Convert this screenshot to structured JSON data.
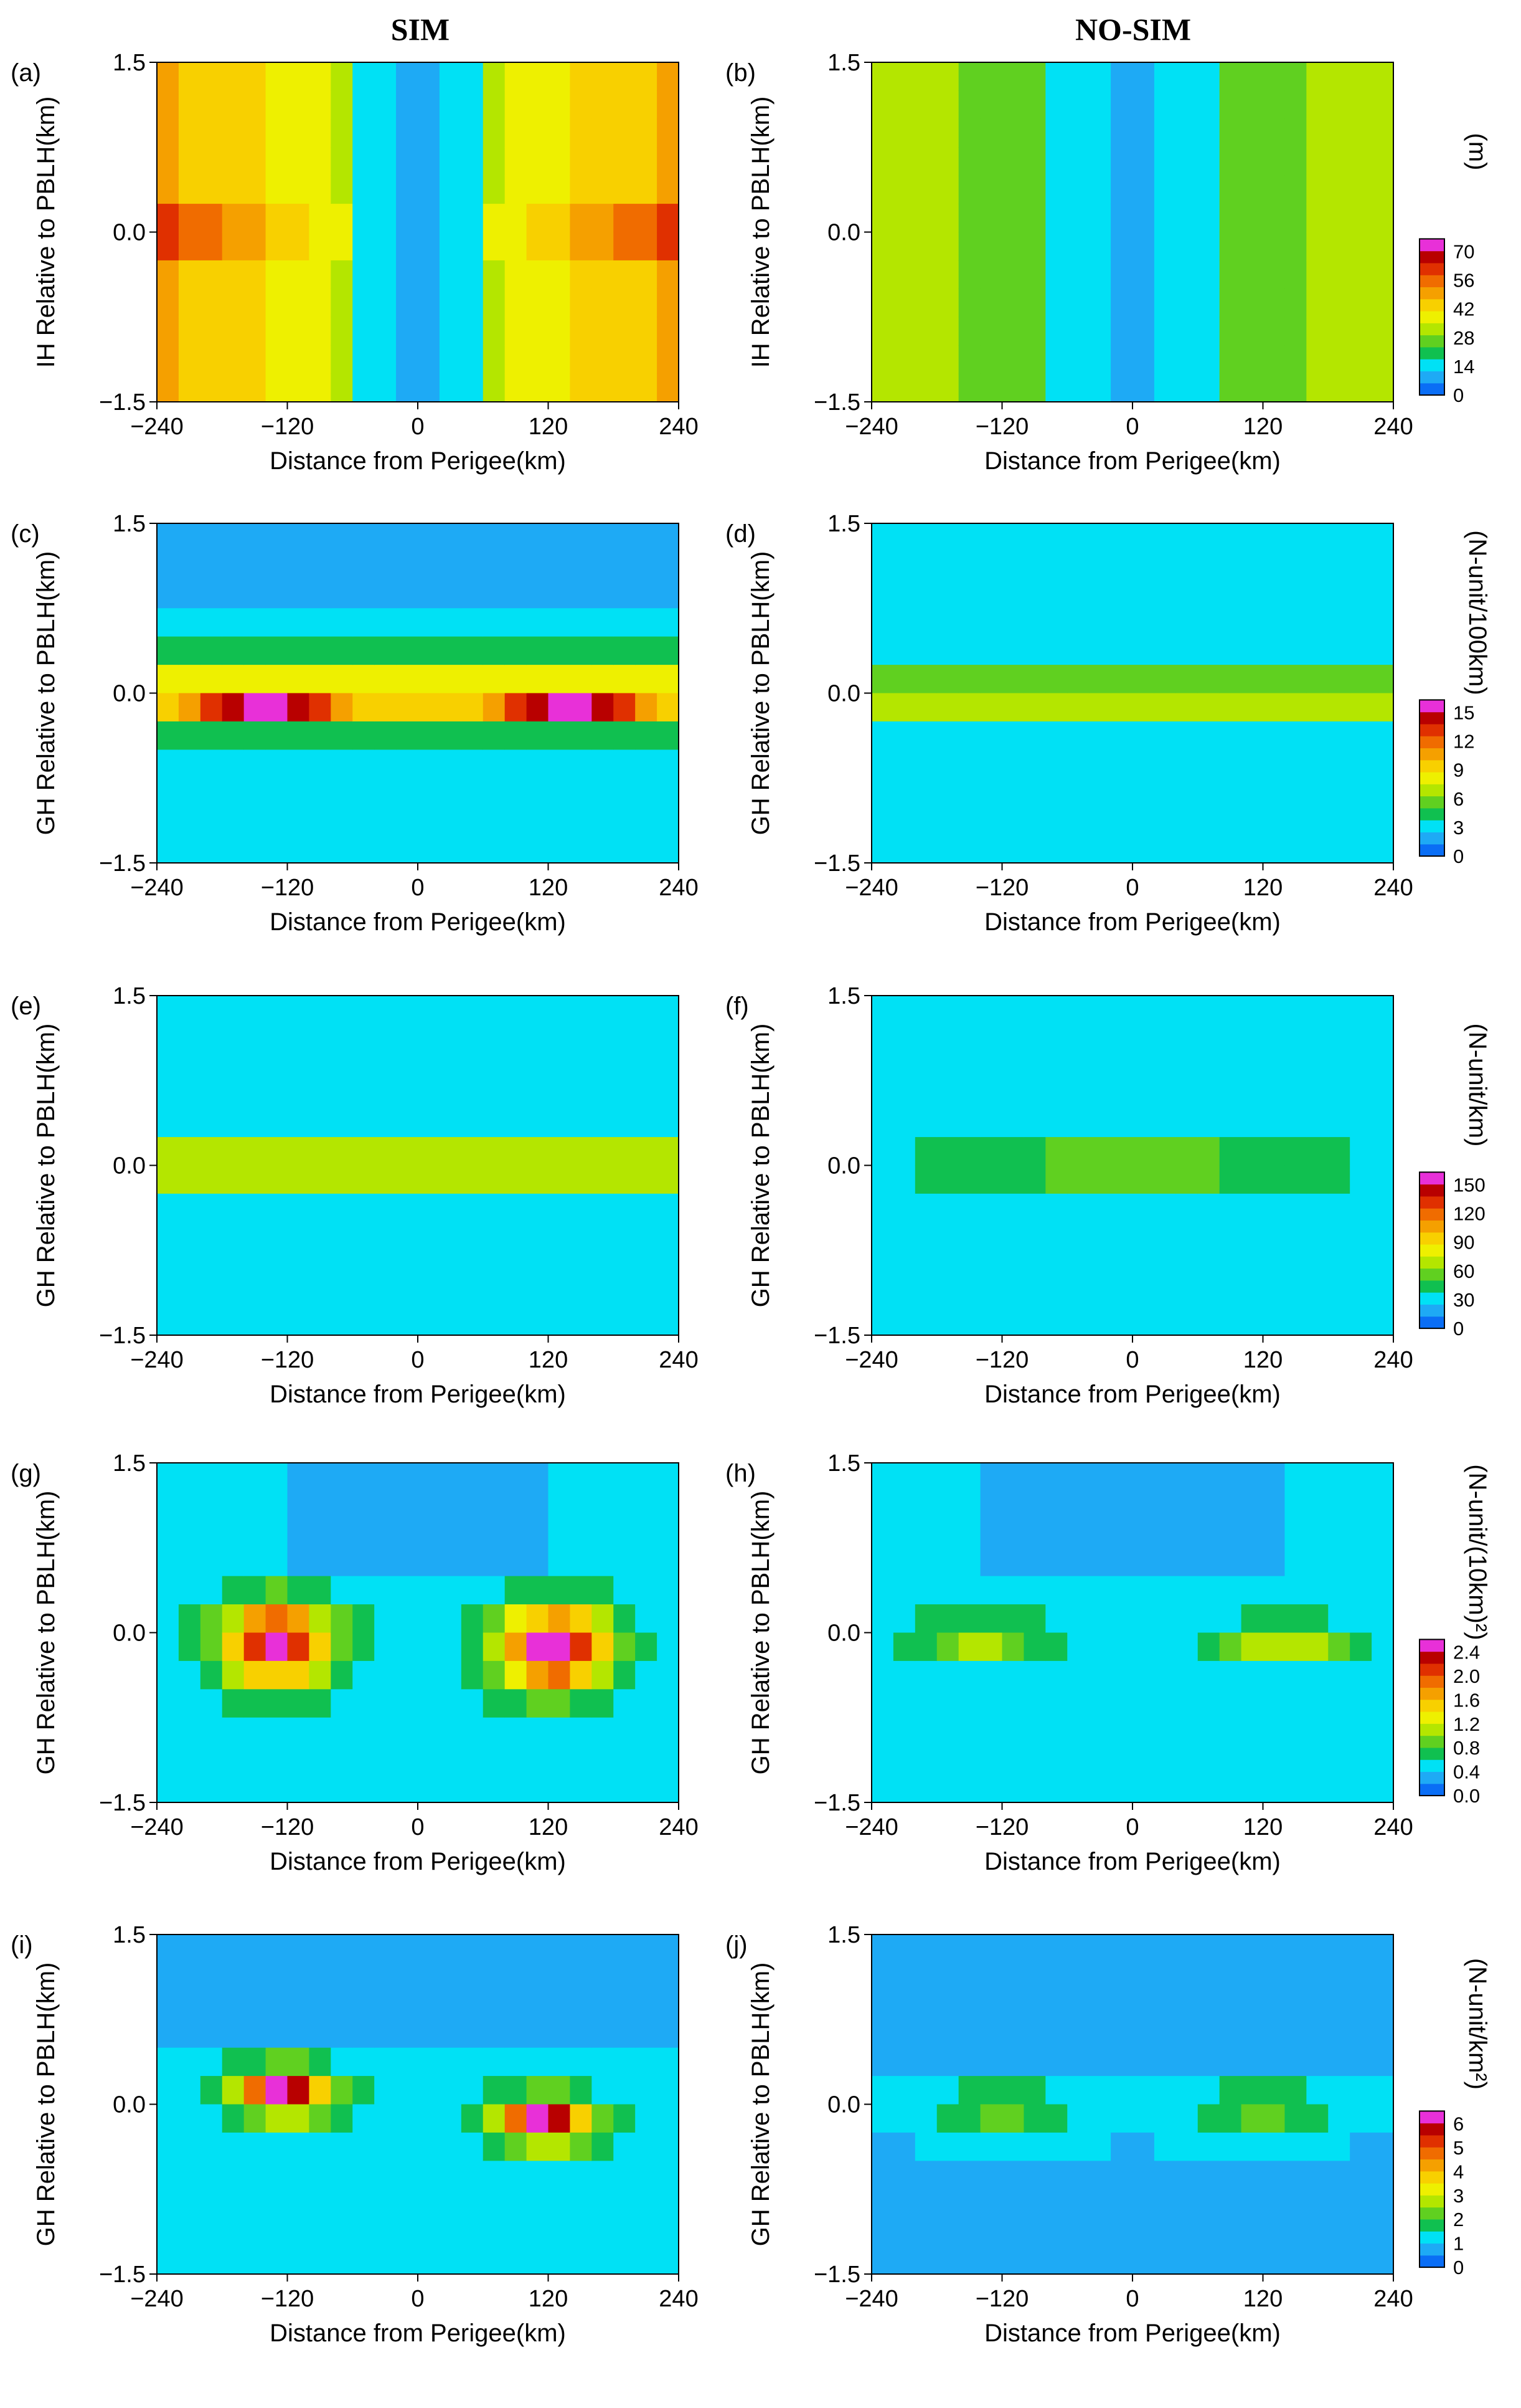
{
  "figure": {
    "column_titles": [
      "SIM",
      "NO-SIM"
    ],
    "colors": {
      "frame": "#000000",
      "palette": [
        "#0a6ef5",
        "#1eaaf5",
        "#00e1f5",
        "#10c050",
        "#60d020",
        "#b4e600",
        "#eef000",
        "#f8d000",
        "#f5a000",
        "#f06c00",
        "#e03000",
        "#b80000",
        "#e830d8"
      ]
    }
  },
  "chart_data": [
    {
      "type": "heatmap",
      "panel": "(a)",
      "title": "SIM",
      "xlabel": "Distance from Perigee(km)",
      "ylabel": "IH Relative to PBLH(km)",
      "xlim": [
        -240,
        240
      ],
      "ylim": [
        -1.5,
        1.5
      ],
      "xticks": [
        "−240",
        "−120",
        "0",
        "120",
        "240"
      ],
      "yticks": [
        "−1.5",
        "0.0",
        "1.5"
      ],
      "colorbar": null
    },
    {
      "type": "heatmap",
      "panel": "(b)",
      "title": "NO-SIM",
      "xlabel": "Distance from Perigee(km)",
      "ylabel": "IH Relative to PBLH(km)",
      "xlim": [
        -240,
        240
      ],
      "ylim": [
        -1.5,
        1.5
      ],
      "xticks": [
        "−240",
        "−120",
        "0",
        "120",
        "240"
      ],
      "yticks": [
        "−1.5",
        "0.0",
        "1.5"
      ],
      "colorbar": {
        "label": "(m)",
        "ticks": [
          "0",
          "14",
          "28",
          "42",
          "56",
          "70"
        ]
      }
    },
    {
      "type": "heatmap",
      "panel": "(c)",
      "xlabel": "Distance from Perigee(km)",
      "ylabel": "GH Relative to PBLH(km)",
      "xlim": [
        -240,
        240
      ],
      "ylim": [
        -1.5,
        1.5
      ],
      "xticks": [
        "−240",
        "−120",
        "0",
        "120",
        "240"
      ],
      "yticks": [
        "−1.5",
        "0.0",
        "1.5"
      ],
      "colorbar": null
    },
    {
      "type": "heatmap",
      "panel": "(d)",
      "xlabel": "Distance from Perigee(km)",
      "ylabel": "GH Relative to PBLH(km)",
      "xlim": [
        -240,
        240
      ],
      "ylim": [
        -1.5,
        1.5
      ],
      "xticks": [
        "−240",
        "−120",
        "0",
        "120",
        "240"
      ],
      "yticks": [
        "−1.5",
        "0.0",
        "1.5"
      ],
      "colorbar": {
        "label": "(N-unit/100km)",
        "ticks": [
          "0",
          "3",
          "6",
          "9",
          "12",
          "15"
        ]
      }
    },
    {
      "type": "heatmap",
      "panel": "(e)",
      "xlabel": "Distance from Perigee(km)",
      "ylabel": "GH Relative to PBLH(km)",
      "xlim": [
        -240,
        240
      ],
      "ylim": [
        -1.5,
        1.5
      ],
      "xticks": [
        "−240",
        "−120",
        "0",
        "120",
        "240"
      ],
      "yticks": [
        "−1.5",
        "0.0",
        "1.5"
      ],
      "colorbar": null
    },
    {
      "type": "heatmap",
      "panel": "(f)",
      "xlabel": "Distance from Perigee(km)",
      "ylabel": "GH Relative to PBLH(km)",
      "xlim": [
        -240,
        240
      ],
      "ylim": [
        -1.5,
        1.5
      ],
      "xticks": [
        "−240",
        "−120",
        "0",
        "120",
        "240"
      ],
      "yticks": [
        "−1.5",
        "0.0",
        "1.5"
      ],
      "colorbar": {
        "label": "(N-unit/km)",
        "ticks": [
          "0",
          "30",
          "60",
          "90",
          "120",
          "150"
        ]
      }
    },
    {
      "type": "heatmap",
      "panel": "(g)",
      "xlabel": "Distance from Perigee(km)",
      "ylabel": "GH Relative to PBLH(km)",
      "xlim": [
        -240,
        240
      ],
      "ylim": [
        -1.5,
        1.5
      ],
      "xticks": [
        "−240",
        "−120",
        "0",
        "120",
        "240"
      ],
      "yticks": [
        "−1.5",
        "0.0",
        "1.5"
      ],
      "colorbar": null
    },
    {
      "type": "heatmap",
      "panel": "(h)",
      "xlabel": "Distance from Perigee(km)",
      "ylabel": "GH Relative to PBLH(km)",
      "xlim": [
        -240,
        240
      ],
      "ylim": [
        -1.5,
        1.5
      ],
      "xticks": [
        "−240",
        "−120",
        "0",
        "120",
        "240"
      ],
      "yticks": [
        "−1.5",
        "0.0",
        "1.5"
      ],
      "colorbar": {
        "label": "(N-unit/(10km)²)",
        "ticks": [
          "0.0",
          "0.4",
          "0.8",
          "1.2",
          "1.6",
          "2.0",
          "2.4"
        ]
      }
    },
    {
      "type": "heatmap",
      "panel": "(i)",
      "xlabel": "Distance from Perigee(km)",
      "ylabel": "GH Relative to PBLH(km)",
      "xlim": [
        -240,
        240
      ],
      "ylim": [
        -1.5,
        1.5
      ],
      "xticks": [
        "−240",
        "−120",
        "0",
        "120",
        "240"
      ],
      "yticks": [
        "−1.5",
        "0.0",
        "1.5"
      ],
      "colorbar": null
    },
    {
      "type": "heatmap",
      "panel": "(j)",
      "xlabel": "Distance from Perigee(km)",
      "ylabel": "GH Relative to PBLH(km)",
      "xlim": [
        -240,
        240
      ],
      "ylim": [
        -1.5,
        1.5
      ],
      "xticks": [
        "−240",
        "−120",
        "0",
        "120",
        "240"
      ],
      "yticks": [
        "−1.5",
        "0.0",
        "1.5"
      ],
      "colorbar": {
        "label": "(N-unit/km²)",
        "ticks": [
          "0",
          "1",
          "2",
          "3",
          "4",
          "5",
          "6"
        ]
      }
    }
  ]
}
